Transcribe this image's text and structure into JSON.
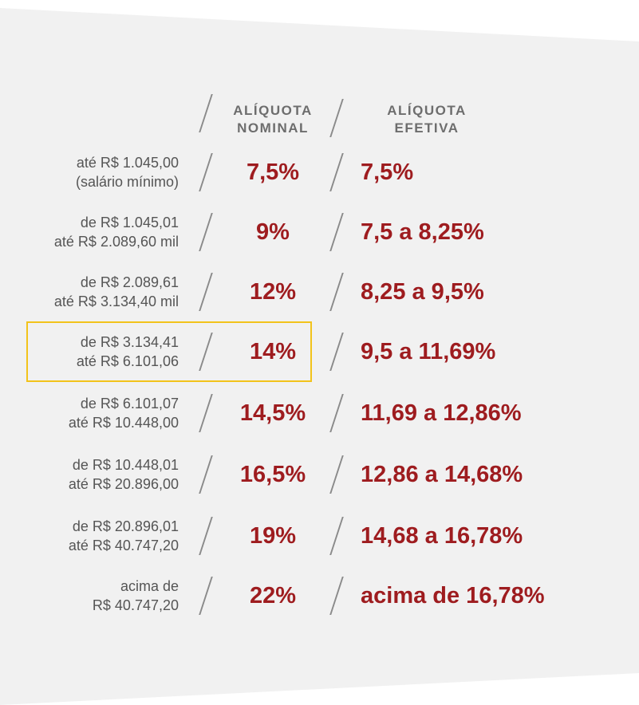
{
  "headers": {
    "nominal": [
      "ALÍQUOTA",
      "NOMINAL"
    ],
    "efetiva": [
      "ALÍQUOTA",
      "EFETIVA"
    ]
  },
  "rows": [
    {
      "range": [
        "até R$ 1.045,00",
        "(salário mínimo)"
      ],
      "nominal": "7,5%",
      "efetiva": "7,5%"
    },
    {
      "range": [
        "de R$ 1.045,01",
        "até R$ 2.089,60 mil"
      ],
      "nominal": "9%",
      "efetiva": "7,5 a 8,25%"
    },
    {
      "range": [
        "de R$ 2.089,61",
        "até R$ 3.134,40 mil"
      ],
      "nominal": "12%",
      "efetiva": "8,25 a 9,5%"
    },
    {
      "range": [
        "de R$ 3.134,41",
        "até R$ 6.101,06"
      ],
      "nominal": "14%",
      "efetiva": "9,5 a 11,69%",
      "highlighted": true
    },
    {
      "range": [
        "de R$ 6.101,07",
        "até R$ 10.448,00"
      ],
      "nominal": "14,5%",
      "efetiva": "11,69 a 12,86%"
    },
    {
      "range": [
        "de R$ 10.448,01",
        "até R$ 20.896,00"
      ],
      "nominal": "16,5%",
      "efetiva": "12,86 a 14,68%"
    },
    {
      "range": [
        "de R$ 20.896,01",
        "até R$ 40.747,20"
      ],
      "nominal": "19%",
      "efetiva": "14,68 a 16,78%"
    },
    {
      "range": [
        "acima de",
        "R$ 40.747,20"
      ],
      "nominal": "22%",
      "efetiva": "acima de 16,78%"
    }
  ],
  "colors": {
    "value": "#9e1c1f",
    "label": "#555555",
    "header": "#6d6d6d",
    "highlight": "#f2c31b",
    "background": "#f1f1f1"
  }
}
